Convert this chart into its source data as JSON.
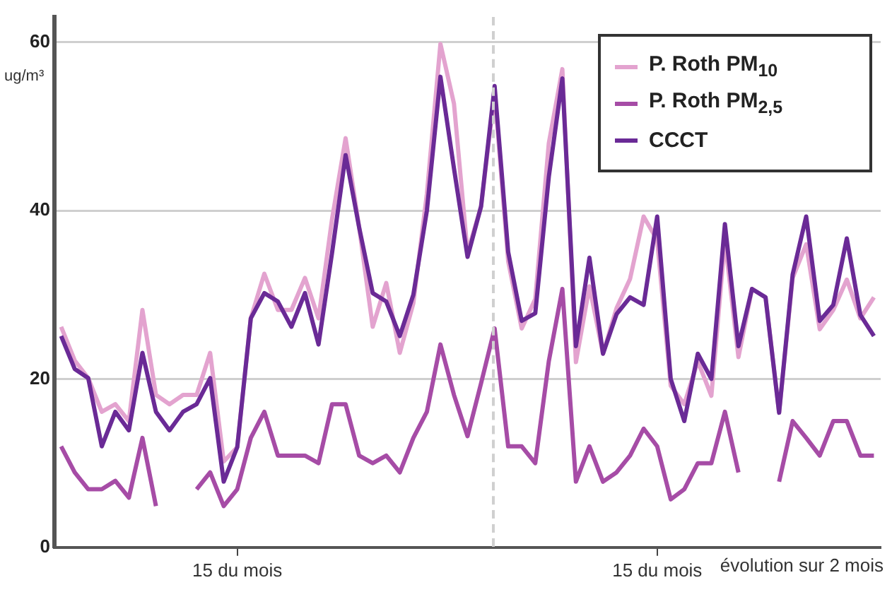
{
  "chart_data": {
    "type": "line",
    "ylabel": "ug/m³",
    "categories": [
      null,
      null,
      null,
      null,
      null,
      null,
      null,
      null,
      null,
      null,
      null,
      null,
      null,
      "15 du mois",
      null,
      null,
      null,
      null,
      null,
      null,
      null,
      null,
      null,
      null,
      null,
      null,
      null,
      null,
      null,
      null,
      null,
      null,
      null,
      null,
      null,
      null,
      null,
      null,
      null,
      null,
      null,
      null,
      null,
      null,
      "15 du mois",
      null,
      null,
      null,
      null,
      null,
      null,
      null,
      null,
      null,
      null,
      null,
      null,
      null,
      null,
      null,
      null
    ],
    "series": [
      {
        "name": "P. Roth PM$_{10}$",
        "color": "#e3a3cf",
        "values": [
          26.2,
          22.2,
          20.1,
          16.1,
          17,
          15,
          28.2,
          18.1,
          17,
          18.1,
          18.1,
          23.1,
          10.2,
          11.9,
          27.2,
          32.5,
          28.2,
          28.2,
          32,
          27.2,
          39,
          48.6,
          38,
          26.2,
          31.4,
          23.1,
          29,
          42,
          59.8,
          52.7,
          35,
          40.5,
          54,
          34,
          26,
          29.5,
          48,
          56.8,
          22,
          31,
          23,
          28.4,
          31.9,
          39.3,
          36.5,
          19.2,
          17,
          22.1,
          18,
          36.5,
          22.6,
          30.7,
          29.7,
          16,
          32,
          36,
          25.9,
          28.2,
          31.8,
          27.2,
          29.7
        ]
      },
      {
        "name": "P. Roth PM$_{2,5}$",
        "color": "#a64ca6",
        "values": [
          12,
          8.9,
          6.9,
          6.9,
          7.9,
          5.9,
          13,
          4.9,
          null,
          null,
          6.9,
          8.9,
          4.9,
          6.9,
          13,
          16.1,
          10.9,
          10.9,
          10.9,
          10,
          17,
          17,
          10.9,
          10,
          10.9,
          8.9,
          13,
          16.1,
          24.1,
          18.1,
          13.2,
          19.5,
          26,
          12,
          12,
          10,
          22.1,
          30.7,
          7.8,
          12,
          7.8,
          8.9,
          10.9,
          14.1,
          12,
          5.7,
          6.9,
          10,
          10,
          16.1,
          8.9,
          null,
          null,
          7.8,
          15,
          13,
          10.9,
          15,
          15,
          10.9,
          10.9
        ]
      },
      {
        "name": "CCCT",
        "color": "#6a2a96",
        "values": [
          25.1,
          21.2,
          20.1,
          12,
          16.1,
          13.9,
          23.1,
          16.1,
          13.9,
          16.1,
          17,
          20.1,
          7.8,
          11.9,
          27.2,
          30.2,
          29.2,
          26.2,
          30.2,
          24.1,
          35,
          46.6,
          38,
          30.2,
          29.2,
          25.1,
          30,
          40,
          55.9,
          45,
          34.5,
          40.5,
          54.8,
          35.1,
          26.9,
          27.8,
          44,
          55.7,
          23.9,
          34.4,
          23,
          27.7,
          29.7,
          28.8,
          39.3,
          20,
          15,
          23,
          20,
          38.4,
          23.9,
          30.7,
          29.7,
          16,
          32.4,
          39.3,
          26.9,
          28.8,
          36.7,
          27.6,
          25.1
        ]
      }
    ],
    "ylim": [
      0,
      63
    ],
    "yticks": [
      0,
      20,
      40,
      60
    ],
    "annotations": [
      "évolution sur 2 mois"
    ],
    "grid": "y",
    "legend": "top right",
    "marker": "none",
    "line_style": "solid"
  }
}
